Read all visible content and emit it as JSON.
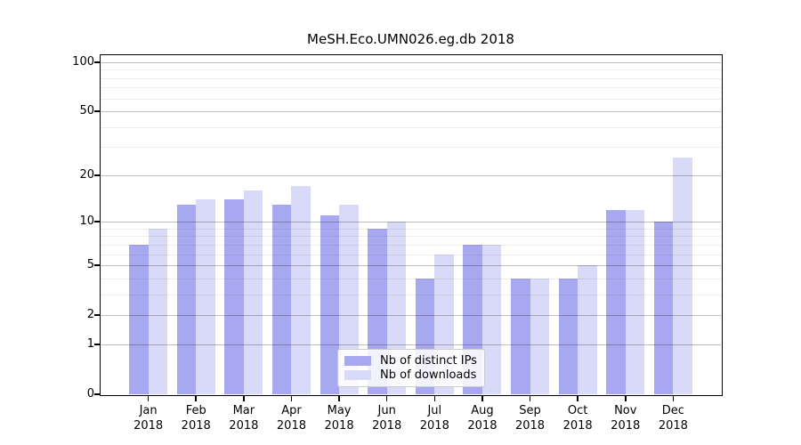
{
  "chart_data": {
    "type": "bar",
    "title": "MeSH.Eco.UMN026.eg.db 2018",
    "year": "2018",
    "categories": [
      "Jan",
      "Feb",
      "Mar",
      "Apr",
      "May",
      "Jun",
      "Jul",
      "Aug",
      "Sep",
      "Oct",
      "Nov",
      "Dec"
    ],
    "series": [
      {
        "name": "Nb of distinct IPs",
        "color": "#a8a8f0",
        "values": [
          7,
          13,
          14,
          13,
          11,
          9,
          4,
          7,
          4,
          4,
          12,
          10
        ]
      },
      {
        "name": "Nb of downloads",
        "color": "#d9d9f8",
        "values": [
          9,
          14,
          16,
          17,
          13,
          10,
          6,
          7,
          4,
          5,
          12,
          26
        ]
      }
    ],
    "xlabel": "",
    "ylabel": "",
    "yscale": "log1p",
    "ylim": [
      0,
      110.5
    ],
    "yticks_major": [
      0,
      1,
      2,
      5,
      10,
      20,
      50,
      100
    ],
    "yticks_minor": [
      3,
      4,
      6,
      7,
      8,
      9,
      30,
      40,
      60,
      70,
      80,
      90
    ],
    "grid": true,
    "legend_position": "lower center"
  }
}
